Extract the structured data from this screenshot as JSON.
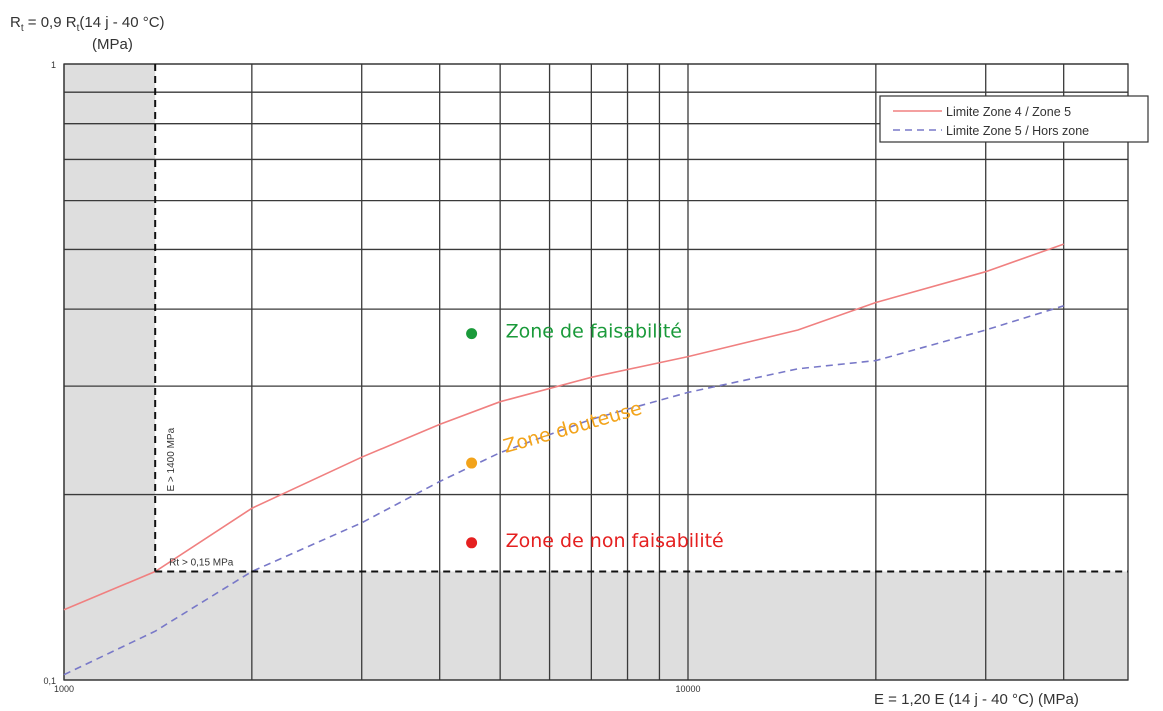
{
  "chart_data": {
    "type": "line",
    "ylabel_line1_main": "R",
    "ylabel_line1_sub": "t",
    "ylabel_line1_mid": " = 0,9 R",
    "ylabel_line1_sub2": "t",
    "ylabel_line1_end": "(14 j - 40 °C)",
    "ylabel_line2": "(MPa)",
    "xlabel": "E = 1,20 E (14 j - 40 °C)  (MPa)",
    "x_scale": "log",
    "y_scale": "log",
    "xlim": [
      1000,
      40000
    ],
    "ylim": [
      0.1,
      1
    ],
    "x_tick_labels": [
      {
        "value": 1000,
        "label": "1000"
      },
      {
        "value": 10000,
        "label": "10000"
      }
    ],
    "y_tick_labels": [
      {
        "value": 1,
        "label": "1"
      },
      {
        "value": 0.1,
        "label": "0,1"
      }
    ],
    "x_gridlines": [
      1000,
      2000,
      3000,
      4000,
      5000,
      6000,
      7000,
      8000,
      9000,
      10000,
      20000,
      30000,
      40000
    ],
    "y_gridlines": [
      0.1,
      0.2,
      0.3,
      0.4,
      0.5,
      0.6,
      0.7,
      0.8,
      0.9,
      1
    ],
    "series": [
      {
        "name": "Limite Zone 4 / Zone 5",
        "color": "#f08080",
        "style": "solid",
        "x": [
          1000,
          1400,
          2000,
          3000,
          4000,
          5000,
          7000,
          10000,
          15000,
          20000,
          30000,
          40000
        ],
        "y": [
          0.13,
          0.15,
          0.19,
          0.23,
          0.26,
          0.283,
          0.31,
          0.335,
          0.37,
          0.41,
          0.46,
          0.51
        ]
      },
      {
        "name": "Limite Zone 5 / Hors zone",
        "color": "#7878c8",
        "style": "dashed",
        "x": [
          1000,
          1400,
          2000,
          3000,
          4000,
          5000,
          7000,
          10000,
          15000,
          20000,
          30000,
          40000
        ],
        "y": [
          0.102,
          0.12,
          0.15,
          0.18,
          0.21,
          0.234,
          0.265,
          0.293,
          0.32,
          0.33,
          0.37,
          0.405
        ]
      }
    ],
    "thresholds": {
      "E_min": 1400,
      "E_label": "E > 1400 MPa",
      "Rt_min": 0.15,
      "Rt_label": "Rt > 0,15 MPa"
    },
    "zone_points": [
      {
        "x": 4500,
        "y": 0.365,
        "color": "#1a9a3a",
        "label": "Zone de faisabilité"
      },
      {
        "x": 4500,
        "y": 0.225,
        "color": "#f2a31a",
        "label": "Zone douteuse"
      },
      {
        "x": 4500,
        "y": 0.167,
        "color": "#e52020",
        "label": "Zone de non faisabilité"
      }
    ],
    "legend": {
      "placement": "top-right"
    },
    "grid": true,
    "shaded_region_color": "#dedede"
  }
}
